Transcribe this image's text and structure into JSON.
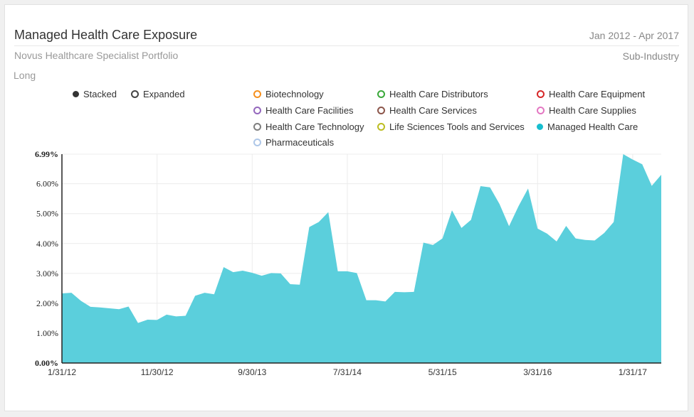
{
  "header": {
    "title": "Managed Health Care Exposure",
    "date_range": "Jan 2012 - Apr 2017",
    "subtitle": "Novus Healthcare Specialist Portfolio",
    "breakdown": "Sub-Industry",
    "side": "Long"
  },
  "view_toggle": {
    "stacked": {
      "label": "Stacked",
      "selected": true
    },
    "expanded": {
      "label": "Expanded",
      "selected": false
    }
  },
  "legend": [
    {
      "label": "Biotechnology",
      "color": "#f5901e",
      "filled": false
    },
    {
      "label": "Health Care Distributors",
      "color": "#3aa83a",
      "filled": false
    },
    {
      "label": "Health Care Equipment",
      "color": "#d62728",
      "filled": false
    },
    {
      "label": "Health Care Facilities",
      "color": "#9467bd",
      "filled": false
    },
    {
      "label": "Health Care Services",
      "color": "#8c564b",
      "filled": false
    },
    {
      "label": "Health Care Supplies",
      "color": "#e377c2",
      "filled": false
    },
    {
      "label": "Health Care Technology",
      "color": "#7f7f7f",
      "filled": false
    },
    {
      "label": "Life Sciences Tools and Services",
      "color": "#bcbd22",
      "filled": false
    },
    {
      "label": "Managed Health Care",
      "color": "#17becf",
      "filled": true
    },
    {
      "label": "Pharmaceuticals",
      "color": "#aec7e8",
      "filled": false
    }
  ],
  "chart_data": {
    "type": "area",
    "series": [
      {
        "name": "Managed Health Care",
        "color": "#5bcfdc",
        "values": [
          2.33,
          2.35,
          2.08,
          1.88,
          1.86,
          1.83,
          1.8,
          1.89,
          1.34,
          1.45,
          1.44,
          1.62,
          1.56,
          1.58,
          2.25,
          2.35,
          2.3,
          3.21,
          3.04,
          3.09,
          3.02,
          2.92,
          3.01,
          3.0,
          2.64,
          2.62,
          4.55,
          4.72,
          5.05,
          3.07,
          3.07,
          3.01,
          2.1,
          2.1,
          2.06,
          2.38,
          2.37,
          2.38,
          4.03,
          3.95,
          4.17,
          5.11,
          4.52,
          4.79,
          5.92,
          5.88,
          5.32,
          4.58,
          5.25,
          5.84,
          4.5,
          4.33,
          4.07,
          4.59,
          4.17,
          4.12,
          4.1,
          4.35,
          4.72,
          6.99,
          6.81,
          6.65,
          5.93,
          6.3
        ]
      }
    ],
    "x_start": "1/31/12",
    "x_end": "4/30/17",
    "x_ticks": [
      "1/31/12",
      "11/30/12",
      "9/30/13",
      "7/31/14",
      "5/31/15",
      "3/31/16",
      "1/31/17"
    ],
    "y_ticks": [
      "0.00%",
      "1.00%",
      "2.00%",
      "3.00%",
      "4.00%",
      "5.00%",
      "6.00%",
      "6.99%"
    ],
    "y_tick_values": [
      0,
      1,
      2,
      3,
      4,
      5,
      6,
      6.99
    ],
    "ylim": [
      0,
      6.99
    ],
    "grid": true
  }
}
